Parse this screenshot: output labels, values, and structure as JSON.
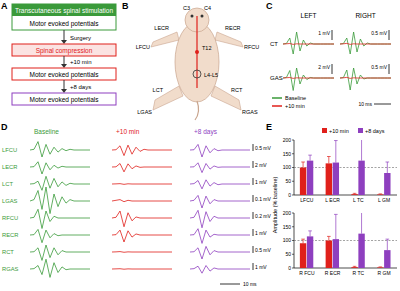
{
  "diagram": {
    "A": {
      "label": "A",
      "steps": [
        {
          "text": "Transcutaneous spinal stimulation"
        },
        {
          "text": "Motor evoked potentials"
        },
        {
          "text": "Surgery"
        },
        {
          "text": "Spinal compression"
        },
        {
          "text": "+10 min"
        },
        {
          "text": "Motor evoked potentials"
        },
        {
          "text": "+8 days"
        },
        {
          "text": "Motor evoked potentials"
        }
      ]
    },
    "B": {
      "label": "B",
      "labels": [
        "C3",
        "C4",
        "T12",
        "L4-L5",
        "LECR",
        "RECR",
        "LFCU",
        "RFCU",
        "LCT",
        "RCT",
        "LGAS",
        "RGAS"
      ]
    }
  },
  "chart_data": [
    {
      "type": "line",
      "title": "C",
      "legend": "bottom-left",
      "x": [
        0,
        2,
        4,
        6,
        8,
        10,
        12,
        14,
        16,
        18,
        20,
        22,
        24,
        26,
        28,
        30
      ],
      "xlim": [
        0,
        30
      ],
      "time_bar": {
        "value": 10,
        "label": "10 ms"
      },
      "columns": [
        "LEFT",
        "RIGHT"
      ],
      "series": [
        {
          "name": "Baseline",
          "color": "#3a9a3a"
        },
        {
          "name": "+10 min",
          "color": "#e0201b"
        }
      ],
      "rows": [
        {
          "name": "CT",
          "cells": [
            {
              "scale_bar": {
                "value": 1,
                "label": "1 mV"
              },
              "traces": [
                [
                  0,
                  0.05,
                  0.6,
                  -1.0,
                  1.2,
                  -0.7,
                  0.4,
                  -0.2,
                  0.1,
                  0,
                  0,
                  0,
                  0,
                  0,
                  0,
                  0
                ],
                [
                  0,
                  0.02,
                  0.05,
                  -0.04,
                  0.02,
                  0,
                  0,
                  0,
                  0,
                  0,
                  0,
                  0,
                  0,
                  0,
                  0,
                  0
                ]
              ]
            },
            {
              "scale_bar": {
                "value": 0.5,
                "label": "0.5 mV"
              },
              "traces": [
                [
                  0,
                  0.02,
                  0.3,
                  -0.5,
                  0.6,
                  -0.4,
                  0.25,
                  -0.1,
                  0.05,
                  0,
                  0,
                  0,
                  0,
                  0,
                  0,
                  0
                ],
                [
                  0,
                  0.01,
                  0.03,
                  -0.02,
                  0.01,
                  0,
                  0,
                  0,
                  0,
                  0,
                  0,
                  0,
                  0,
                  0,
                  0,
                  0
                ]
              ]
            }
          ]
        },
        {
          "name": "GAS",
          "cells": [
            {
              "scale_bar": {
                "value": 2,
                "label": "2 mV"
              },
              "traces": [
                [
                  0,
                  0.1,
                  1.5,
                  -2.5,
                  2.0,
                  -1.2,
                  0.6,
                  -0.3,
                  0.1,
                  0,
                  0,
                  0,
                  0,
                  0,
                  0,
                  0
                ],
                [
                  0,
                  0.05,
                  0.1,
                  -0.08,
                  0.04,
                  0,
                  0,
                  0,
                  0,
                  0,
                  0,
                  0,
                  0,
                  0,
                  0,
                  0
                ]
              ]
            },
            {
              "scale_bar": {
                "value": 0.5,
                "label": "0.5 mV"
              },
              "traces": [
                [
                  0,
                  0.02,
                  0.4,
                  -0.6,
                  0.5,
                  -0.3,
                  0.15,
                  -0.05,
                  0,
                  0,
                  0,
                  0,
                  0,
                  0,
                  0,
                  0
                ],
                [
                  0,
                  0.01,
                  0.03,
                  -0.02,
                  0.01,
                  0,
                  0,
                  0,
                  0,
                  0,
                  0,
                  0,
                  0,
                  0,
                  0,
                  0
                ]
              ]
            }
          ]
        }
      ]
    },
    {
      "type": "line",
      "title": "D",
      "x": [
        0,
        2,
        4,
        6,
        8,
        10,
        12,
        14,
        16,
        18,
        20,
        22,
        24,
        26,
        28,
        30
      ],
      "xlim": [
        0,
        30
      ],
      "time_bar": {
        "value": 10,
        "label": "10 ms"
      },
      "columns": [
        "Baseline",
        "+10 min",
        "+8 days"
      ],
      "colors": [
        "#3a9a3a",
        "#e0201b",
        "#8e3fbf"
      ],
      "rows": [
        {
          "name": "LFCU",
          "scale_bar": {
            "value": 0.5,
            "label": "0.5 mV"
          },
          "traces": [
            [
              0,
              0.05,
              0.6,
              -0.5,
              0.4,
              -0.3,
              0.2,
              -0.15,
              0.1,
              -0.05,
              0.05,
              0,
              0,
              0,
              0,
              0
            ],
            [
              0,
              0.02,
              0.3,
              -0.4,
              0.35,
              -0.3,
              0.2,
              -0.1,
              0.05,
              0,
              0,
              0,
              0,
              0,
              0,
              0
            ],
            [
              0,
              0.02,
              0.4,
              -0.5,
              0.3,
              -0.2,
              0.1,
              -0.05,
              0,
              0,
              0,
              0,
              0,
              0,
              0,
              0
            ]
          ]
        },
        {
          "name": "LECR",
          "scale_bar": {
            "value": 2,
            "label": "2 mV"
          },
          "traces": [
            [
              0,
              0.1,
              1.5,
              -2.0,
              1.2,
              -0.8,
              0.5,
              -0.3,
              0.2,
              0,
              0,
              0,
              0,
              0,
              0,
              0
            ],
            [
              0,
              0.05,
              1.0,
              -1.4,
              0.9,
              -0.5,
              0.3,
              -0.1,
              0,
              0,
              0,
              0,
              0,
              0,
              0,
              0
            ],
            [
              0,
              0.05,
              1.2,
              -1.6,
              1.0,
              -0.6,
              0.3,
              -0.1,
              0,
              0,
              0,
              0,
              0,
              0,
              0,
              0
            ]
          ]
        },
        {
          "name": "LCT",
          "scale_bar": {
            "value": 1,
            "label": "1 mV"
          },
          "traces": [
            [
              0,
              0.05,
              0.4,
              -0.9,
              1.1,
              -0.6,
              0.8,
              -0.4,
              0.3,
              -0.2,
              0.1,
              0,
              0,
              0,
              0,
              0
            ],
            [
              0,
              0.02,
              0.05,
              -0.05,
              0.03,
              0,
              0,
              0,
              0,
              0,
              0,
              0,
              0,
              0,
              0,
              0
            ],
            [
              0,
              0.05,
              0.5,
              -0.7,
              0.6,
              -0.3,
              0.2,
              -0.1,
              0,
              0,
              0,
              0,
              0,
              0,
              0,
              0
            ]
          ]
        },
        {
          "name": "LGAS",
          "scale_bar": {
            "value": 0.1,
            "label": "0.1 mV"
          },
          "traces": [
            [
              0,
              0.02,
              0.15,
              -0.12,
              0.2,
              -0.18,
              0.1,
              -0.08,
              0.06,
              -0.03,
              0.02,
              0,
              0,
              0,
              0,
              0
            ],
            [
              0,
              0.01,
              0.02,
              -0.01,
              0.01,
              0,
              0,
              0,
              0,
              0,
              0,
              0,
              0,
              0,
              0,
              0
            ],
            [
              0,
              0.01,
              0.08,
              -0.1,
              0.07,
              -0.04,
              0.02,
              0,
              0,
              0,
              0,
              0,
              0,
              0,
              0,
              0
            ]
          ]
        },
        {
          "name": "RFCU",
          "scale_bar": {
            "value": 0.2,
            "label": "0.2 mV"
          },
          "traces": [
            [
              0,
              0.02,
              0.25,
              -0.3,
              0.2,
              -0.1,
              0.05,
              0,
              0,
              0,
              0,
              0,
              0,
              0,
              0,
              0
            ],
            [
              0,
              0.02,
              0.2,
              -0.25,
              0.15,
              -0.08,
              0.03,
              0,
              0,
              0,
              0,
              0,
              0,
              0,
              0,
              0
            ],
            [
              0,
              0.02,
              0.22,
              -0.28,
              0.18,
              -0.1,
              0.05,
              0,
              0,
              0,
              0,
              0,
              0,
              0,
              0,
              0
            ]
          ]
        },
        {
          "name": "RECR",
          "scale_bar": {
            "value": 1,
            "label": "1 mV"
          },
          "traces": [
            [
              0,
              0.05,
              0.8,
              -1.1,
              0.7,
              -0.4,
              0.2,
              -0.1,
              0,
              0,
              0,
              0,
              0,
              0,
              0,
              0
            ],
            [
              0,
              0.05,
              0.7,
              -1.0,
              0.6,
              -0.3,
              0.15,
              0,
              0,
              0,
              0,
              0,
              0,
              0,
              0,
              0
            ],
            [
              0,
              0.05,
              0.9,
              -1.2,
              0.7,
              -0.3,
              0.1,
              0,
              0,
              0,
              0,
              0,
              0,
              0,
              0,
              0
            ]
          ]
        },
        {
          "name": "RCT",
          "scale_bar": {
            "value": 0.5,
            "label": "0.5 mV"
          },
          "traces": [
            [
              0,
              0.02,
              0.3,
              -0.6,
              0.5,
              -0.4,
              0.3,
              -0.2,
              0.1,
              0,
              0,
              0,
              0,
              0,
              0,
              0
            ],
            [
              0,
              0.01,
              0.03,
              -0.02,
              0.01,
              0,
              0,
              0,
              0,
              0,
              0,
              0,
              0,
              0,
              0,
              0
            ],
            [
              0,
              0.02,
              0.3,
              -0.5,
              0.4,
              -0.2,
              0.1,
              0,
              0,
              0,
              0,
              0,
              0,
              0,
              0,
              0
            ]
          ]
        },
        {
          "name": "RGAS",
          "scale_bar": {
            "value": 1,
            "label": "1 mV"
          },
          "traces": [
            [
              0,
              0.05,
              0.5,
              -0.8,
              1.4,
              -1.2,
              0.9,
              -0.5,
              0.3,
              -0.1,
              0,
              0,
              0,
              0,
              0,
              0
            ],
            [
              0,
              0.02,
              0.04,
              -0.03,
              0.02,
              0,
              0,
              0,
              0,
              0,
              0,
              0,
              0,
              0,
              0,
              0
            ],
            [
              0,
              0.05,
              0.4,
              -0.6,
              0.5,
              -0.3,
              0.15,
              0,
              0,
              0,
              0,
              0,
              0,
              0,
              0,
              0
            ]
          ]
        }
      ]
    },
    {
      "type": "bar",
      "title": "E",
      "ylabel": "Amplitude (% baseline)",
      "legend": "top-right",
      "categories": [
        "LFCU",
        "L ECR",
        "L TC",
        "L GM"
      ],
      "series": [
        {
          "name": "+10 min",
          "color": "#e0201b",
          "values": [
            100,
            115,
            3,
            2
          ],
          "errors": [
            20,
            25,
            3,
            2
          ]
        },
        {
          "name": "+8 days",
          "color": "#8e3fbf",
          "values": [
            125,
            118,
            125,
            80
          ],
          "errors": [
            20,
            80,
            95,
            40
          ]
        }
      ],
      "ylim": [
        0,
        200
      ],
      "yticks": [
        0,
        50,
        100,
        150,
        200
      ],
      "reference_line": 100
    },
    {
      "type": "bar",
      "categories": [
        "R FCU",
        "R ECR",
        "R TC",
        "R GM"
      ],
      "series": [
        {
          "name": "+10 min",
          "color": "#e0201b",
          "values": [
            90,
            100,
            3,
            2
          ],
          "errors": [
            15,
            15,
            3,
            2
          ]
        },
        {
          "name": "+8 days",
          "color": "#8e3fbf",
          "values": [
            115,
            105,
            125,
            65
          ],
          "errors": [
            20,
            90,
            95,
            40
          ]
        }
      ],
      "ylim": [
        0,
        200
      ],
      "yticks": [
        0,
        50,
        100,
        150,
        200
      ],
      "reference_line": 100
    }
  ]
}
